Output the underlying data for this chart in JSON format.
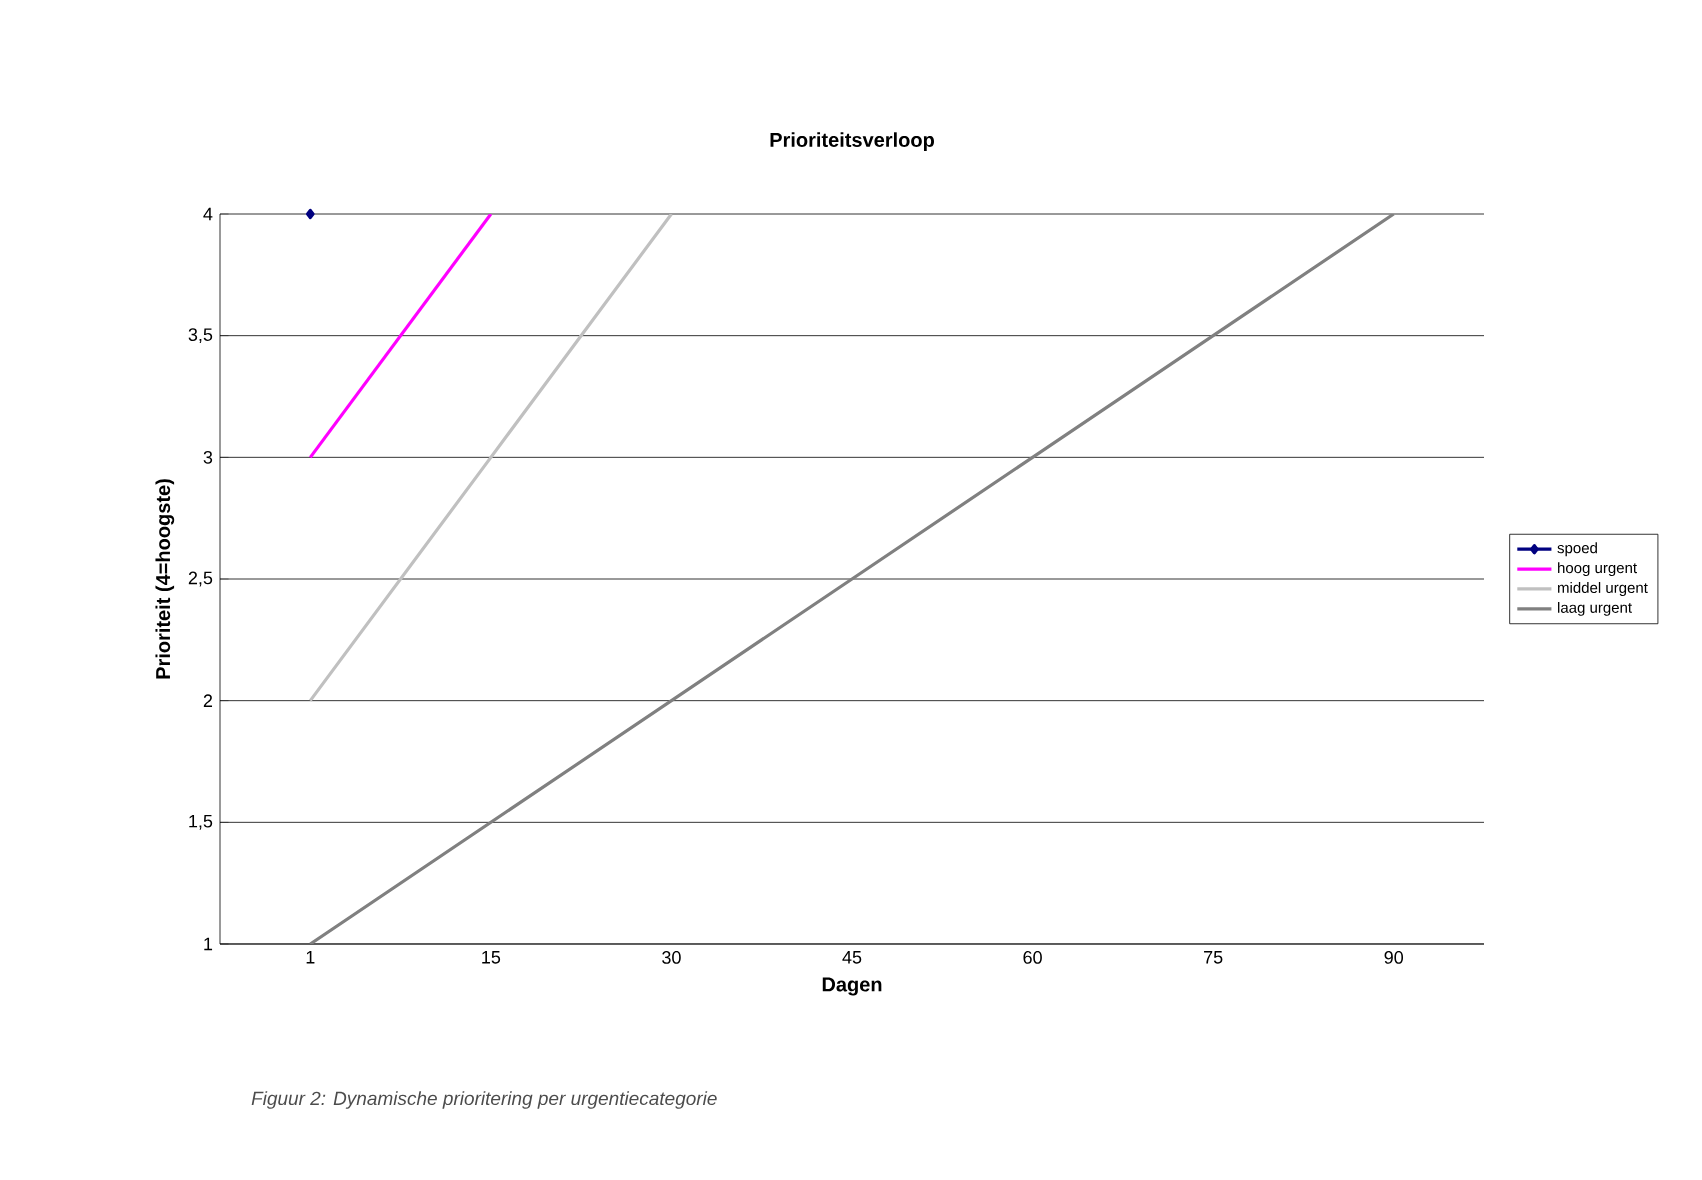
{
  "chart_data": {
    "type": "line",
    "title": "Prioriteitsverloop",
    "xlabel": "Dagen",
    "ylabel": "Prioriteit (4=hoogste)",
    "categories": [
      "1",
      "15",
      "30",
      "45",
      "60",
      "75",
      "90"
    ],
    "series": [
      {
        "name": "spoed",
        "color": "#000080",
        "marker": "diamond",
        "values": [
          4,
          null,
          null,
          null,
          null,
          null,
          null
        ]
      },
      {
        "name": "hoog urgent",
        "color": "#ff00ff",
        "values": [
          3,
          4,
          null,
          null,
          null,
          null,
          null
        ]
      },
      {
        "name": "middel urgent",
        "color": "#c0c0c0",
        "values": [
          2,
          3,
          4,
          null,
          null,
          null,
          null
        ]
      },
      {
        "name": "laag urgent",
        "color": "#808080",
        "values": [
          1,
          1.5,
          2,
          2.5,
          3,
          3.5,
          4
        ]
      }
    ],
    "ylim": [
      1,
      4
    ],
    "yticks": [
      1,
      {
        "value": 1.5,
        "label": "1,5"
      },
      2,
      {
        "value": 2.5,
        "label": "2,5"
      },
      3,
      {
        "value": 3.5,
        "label": "3,5"
      },
      4
    ],
    "grid": "y",
    "legend": "right",
    "annotations": [
      "Figuur 2: Dynamische prioritering per urgentiecategorie"
    ]
  }
}
